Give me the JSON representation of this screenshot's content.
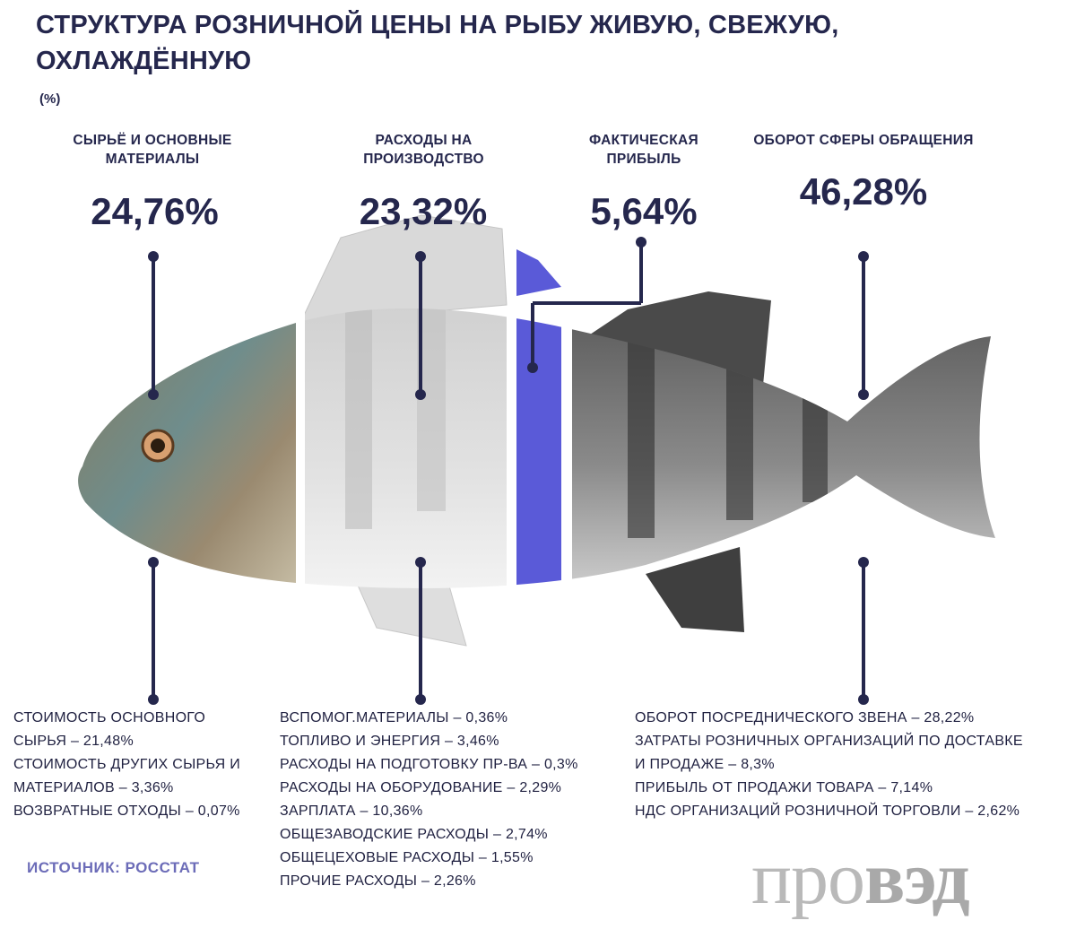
{
  "title": "СТРУКТУРА РОЗНИЧНОЙ ЦЕНЫ НА РЫБУ ЖИВУЮ, СВЕЖУЮ, ОХЛАЖДЁННУЮ",
  "unit": "(%)",
  "source": "ИСТОЧНИК:  РОССТАТ",
  "logo": {
    "part1": "про",
    "part2": "вэд"
  },
  "colors": {
    "text": "#25274d",
    "accent": "#5a5ad8",
    "source": "#6c6cb8"
  },
  "chart_data": {
    "type": "bar",
    "title": "СТРУКТУРА РОЗНИЧНОЙ ЦЕНЫ НА РЫБУ ЖИВУЮ, СВЕЖУЮ, ОХЛАЖДЁННУЮ",
    "categories": [
      {
        "name": "СЫРЬЁ И ОСНОВНЫЕ МАТЕРИАЛЫ",
        "label_lines": [
          "СЫРЬЁ И ОСНОВНЫЕ",
          "МАТЕРИАЛЫ"
        ],
        "value": 24.76,
        "value_label": "24,76%",
        "items": [
          "СТОИМОСТЬ ОСНОВНОГО",
          "СЫРЬЯ – 21,48%",
          "СТОИМОСТЬ ДРУГИХ СЫРЬЯ И",
          "МАТЕРИАЛОВ – 3,36%",
          "ВОЗВРАТНЫЕ ОТХОДЫ – 0,07%"
        ]
      },
      {
        "name": "РАСХОДЫ НА ПРОИЗВОДСТВО",
        "label_lines": [
          "РАСХОДЫ НА",
          "ПРОИЗВОДСТВО"
        ],
        "value": 23.32,
        "value_label": "23,32%",
        "items": [
          "ВСПОМОГ.МАТЕРИАЛЫ – 0,36%",
          "ТОПЛИВО И ЭНЕРГИЯ – 3,46%",
          "РАСХОДЫ НА ПОДГОТОВКУ ПР-ВА – 0,3%",
          "РАСХОДЫ НА ОБОРУДОВАНИЕ – 2,29%",
          "ЗАРПЛАТА – 10,36%",
          "ОБЩЕЗАВОДСКИЕ РАСХОДЫ – 2,74%",
          "ОБЩЕЦЕХОВЫЕ РАСХОДЫ – 1,55%",
          "ПРОЧИЕ РАСХОДЫ – 2,26%"
        ]
      },
      {
        "name": "ФАКТИЧЕСКАЯ ПРИБЫЛЬ",
        "label_lines": [
          "ФАКТИЧЕСКАЯ",
          "ПРИБЫЛЬ"
        ],
        "value": 5.64,
        "value_label": "5,64%",
        "items": []
      },
      {
        "name": "ОБОРОТ СФЕРЫ ОБРАЩЕНИЯ",
        "label_lines": [
          "ОБОРОТ СФЕРЫ ОБРАЩЕНИЯ"
        ],
        "value": 46.28,
        "value_label": "46,28%",
        "items": [
          "ОБОРОТ ПОСРЕДНИЧЕСКОГО ЗВЕНА – 28,22%",
          "ЗАТРАТЫ РОЗНИЧНЫХ ОРГАНИЗАЦИЙ ПО ДОСТАВКЕ",
          "И ПРОДАЖЕ – 8,3%",
          "ПРИБЫЛЬ ОТ ПРОДАЖИ ТОВАРА – 7,14%",
          "НДС ОРГАНИЗАЦИЙ РОЗНИЧНОЙ ТОРГОВЛИ – 2,62%"
        ]
      }
    ]
  }
}
